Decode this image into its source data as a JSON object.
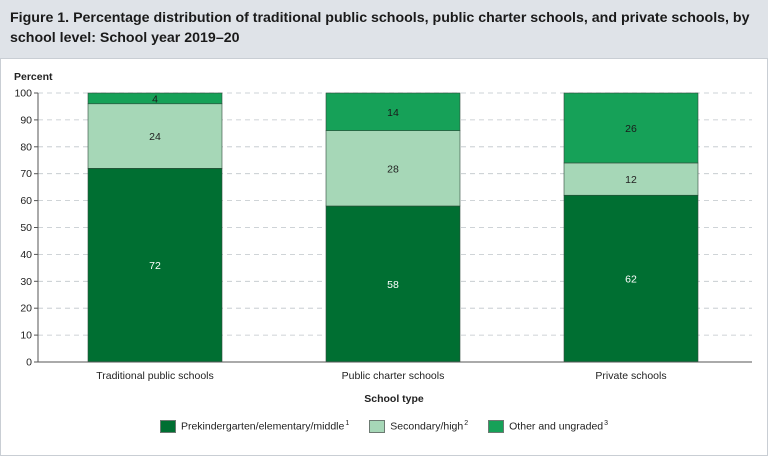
{
  "title": "Figure 1. Percentage distribution of traditional public schools, public charter schools, and private schools, by school level: School year 2019–20",
  "chart_data": {
    "type": "bar",
    "stacked": true,
    "ylabel": "Percent",
    "xlabel": "School type",
    "ylim": [
      0,
      100
    ],
    "yticks": [
      0,
      10,
      20,
      30,
      40,
      50,
      60,
      70,
      80,
      90,
      100
    ],
    "grid": true,
    "legend_placement": "bottom",
    "categories": [
      "Traditional public schools",
      "Public charter schools",
      "Private schools"
    ],
    "series": [
      {
        "name": "Prekindergarten/elementary/middle",
        "footnote": "1",
        "color": "#006f32",
        "label_color": "#ffffff",
        "values": [
          72,
          58,
          62
        ]
      },
      {
        "name": "Secondary/high",
        "footnote": "2",
        "color": "#a6d7b7",
        "label_color": "#222222",
        "values": [
          24,
          28,
          12
        ]
      },
      {
        "name": "Other and ungraded",
        "footnote": "3",
        "color": "#16a158",
        "label_color": "#1a1a1a",
        "values": [
          4,
          14,
          26
        ]
      }
    ]
  }
}
